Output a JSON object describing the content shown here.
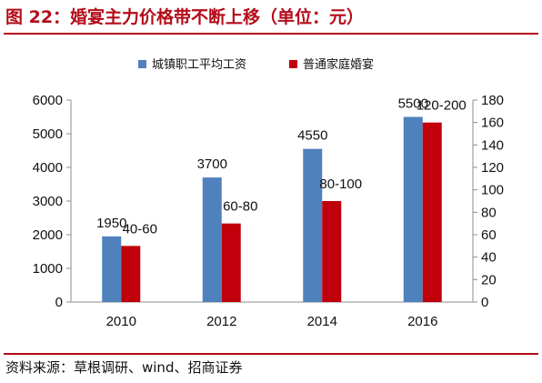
{
  "title": "图 22：婚宴主力价格带不断上移（单位：元）",
  "source": "资料来源：草根调研、wind、招商证券",
  "colors": {
    "accent": "#b40c1a",
    "series1": "#4f81bd",
    "series2": "#c0000b"
  },
  "chart_data": {
    "type": "bar",
    "categories": [
      "2010",
      "2012",
      "2014",
      "2016"
    ],
    "series": [
      {
        "name": "城镇职工平均工资",
        "axis": "left",
        "values": [
          1950,
          3700,
          4550,
          5500
        ],
        "labels": [
          "1950",
          "3700",
          "4550",
          "5500"
        ]
      },
      {
        "name": "普通家庭婚宴",
        "axis": "right",
        "values": [
          50,
          70,
          90,
          160
        ],
        "labels": [
          "40-60",
          "60-80",
          "80-100",
          "120-200"
        ]
      }
    ],
    "y_left": {
      "min": 0,
      "max": 6000,
      "ticks": [
        "0",
        "1000",
        "2000",
        "3000",
        "4000",
        "5000",
        "6000"
      ]
    },
    "y_right": {
      "min": 0,
      "max": 180,
      "ticks": [
        "0",
        "20",
        "40",
        "60",
        "80",
        "100",
        "120",
        "140",
        "160",
        "180"
      ]
    },
    "legend_position": "top",
    "grid": false
  }
}
